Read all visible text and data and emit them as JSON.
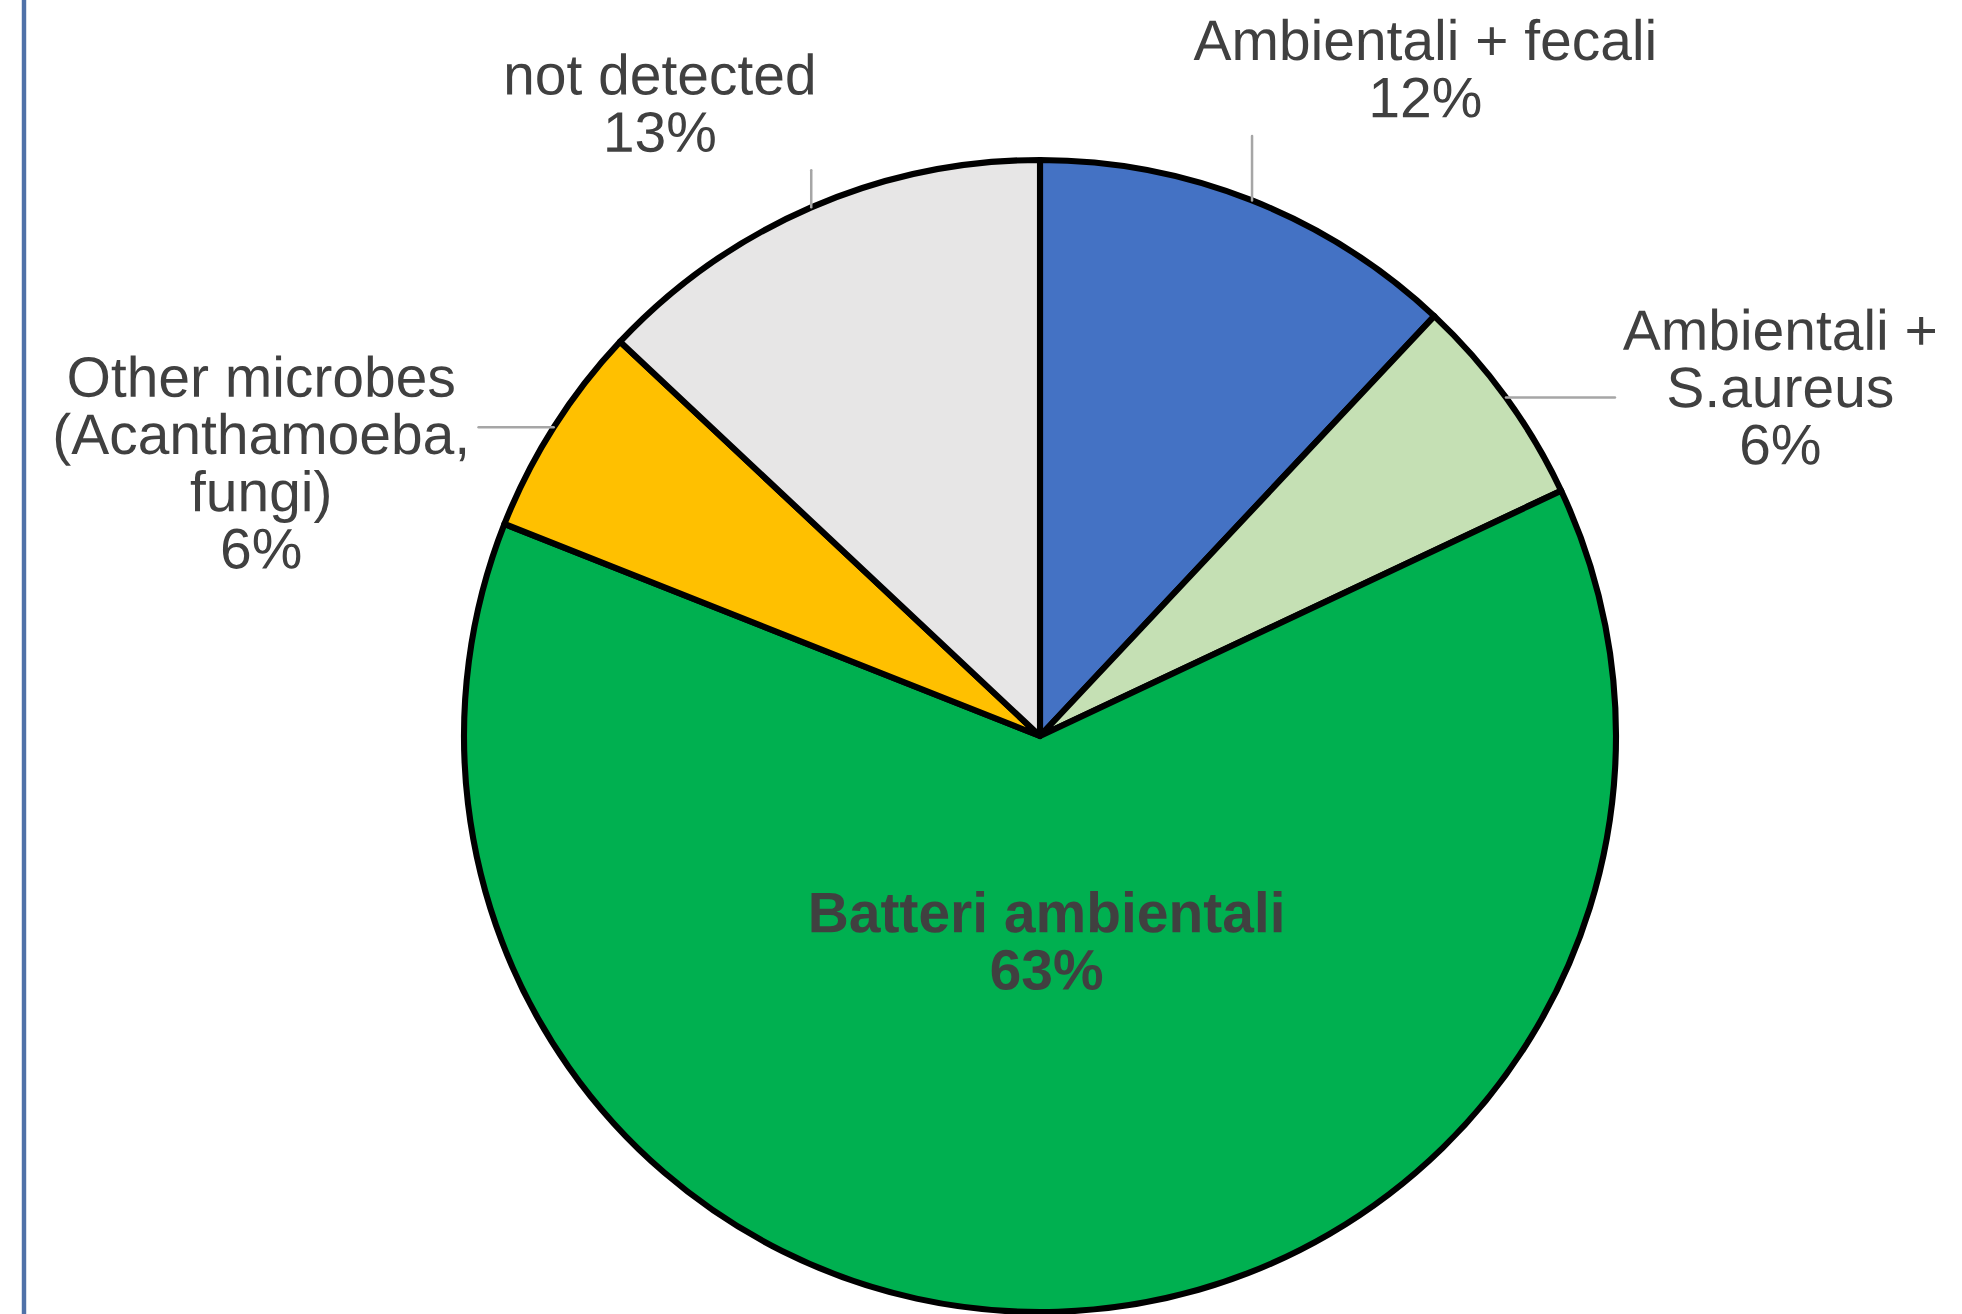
{
  "chart_data": {
    "type": "pie",
    "categories": [
      "Ambientali + fecali",
      "Ambientali +\nS.aureus",
      "Batteri ambientali",
      "Other microbes\n(Acanthamoeba,\nfungi)",
      "not detected"
    ],
    "values": [
      12,
      6,
      63,
      6,
      13
    ],
    "colors": [
      "#4472c4",
      "#c5e0b4",
      "#00b050",
      "#ffc000",
      "#e7e6e6"
    ],
    "value_labels": [
      "12%",
      "6%",
      "63%",
      "6%",
      "13%"
    ]
  }
}
